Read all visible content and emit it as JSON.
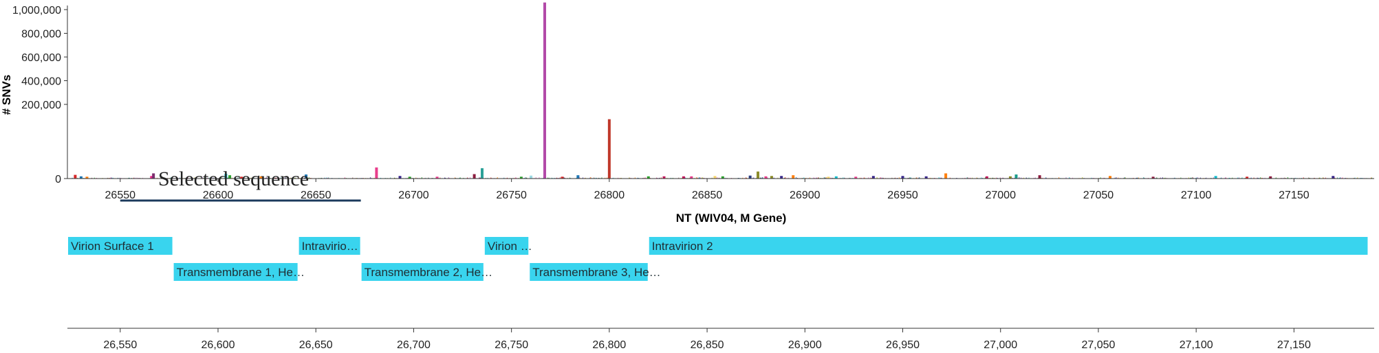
{
  "chart_data": {
    "type": "bar",
    "ylabel": "# SNVs",
    "xlabel": "NT (WIV04, M Gene)",
    "xlim": [
      26523,
      27191
    ],
    "y_ticks": [
      0,
      200000,
      400000,
      600000,
      800000,
      1000000
    ],
    "y_tick_labels": [
      "0",
      "200,000",
      "400,000",
      "600,000",
      "800,000",
      "1,000,000"
    ],
    "x_ticks": [
      26550,
      26600,
      26650,
      26700,
      26750,
      26800,
      26850,
      26900,
      26950,
      27000,
      27050,
      27100,
      27150
    ],
    "x_tick_labels": [
      "26550",
      "26600",
      "26650",
      "26700",
      "26750",
      "26800",
      "26850",
      "26900",
      "26950",
      "27000",
      "27050",
      "27100",
      "27150"
    ],
    "axis_x_tick_labels": [
      "26,550",
      "26,600",
      "26,650",
      "26,700",
      "26,750",
      "26,800",
      "26,850",
      "26,900",
      "26,950",
      "27,000",
      "27,050",
      "27,100",
      "27,150"
    ],
    "selection": {
      "label": "Selected sequence",
      "start": 26550,
      "end": 26673
    },
    "domains": [
      {
        "label": "Virion Surface 1",
        "start": 26523,
        "end": 26577,
        "row": 0
      },
      {
        "label": "Transmembrane 1, He…",
        "start": 26577,
        "end": 26641,
        "row": 1
      },
      {
        "label": "Intravirio…",
        "start": 26641,
        "end": 26673,
        "row": 0
      },
      {
        "label": "Transmembrane 2, He…",
        "start": 26673,
        "end": 26736,
        "row": 1
      },
      {
        "label": "Virion …",
        "start": 26736,
        "end": 26759,
        "row": 0
      },
      {
        "label": "Transmembrane 3, He…",
        "start": 26759,
        "end": 26820,
        "row": 1
      },
      {
        "label": "Intravirion 2",
        "start": 26820,
        "end": 27188,
        "row": 0
      }
    ],
    "highlight_bars": [
      {
        "x": 26527,
        "y": 10000,
        "color": "#d62728"
      },
      {
        "x": 26530,
        "y": 6000,
        "color": "#1f77b4"
      },
      {
        "x": 26533,
        "y": 5000,
        "color": "#ff7f0e"
      },
      {
        "x": 26566,
        "y": 7000,
        "color": "#e7298a"
      },
      {
        "x": 26567,
        "y": 14000,
        "color": "#7b2d6e"
      },
      {
        "x": 26604,
        "y": 13000,
        "color": "#17becf"
      },
      {
        "x": 26606,
        "y": 9000,
        "color": "#2ca02c"
      },
      {
        "x": 26612,
        "y": 5000,
        "color": "#d62728"
      },
      {
        "x": 26622,
        "y": 6000,
        "color": "#ff7f0e"
      },
      {
        "x": 26645,
        "y": 11000,
        "color": "#1f77b4"
      },
      {
        "x": 26681,
        "y": 30000,
        "color": "#e83e8c"
      },
      {
        "x": 26693,
        "y": 7000,
        "color": "#3b2a8c"
      },
      {
        "x": 26698,
        "y": 5000,
        "color": "#2ca02c"
      },
      {
        "x": 26712,
        "y": 5000,
        "color": "#e83e8c"
      },
      {
        "x": 26731,
        "y": 12000,
        "color": "#8c1d40"
      },
      {
        "x": 26735,
        "y": 28000,
        "color": "#2aa198"
      },
      {
        "x": 26755,
        "y": 5000,
        "color": "#2ca02c"
      },
      {
        "x": 26760,
        "y": 8000,
        "color": "#9edae5"
      },
      {
        "x": 26767,
        "y": 1060000,
        "color": "#b24aa8"
      },
      {
        "x": 26776,
        "y": 5000,
        "color": "#d62728"
      },
      {
        "x": 26784,
        "y": 9000,
        "color": "#1f77b4"
      },
      {
        "x": 26800,
        "y": 160000,
        "color": "#c0392b"
      },
      {
        "x": 26820,
        "y": 6000,
        "color": "#2ca02c"
      },
      {
        "x": 26828,
        "y": 6000,
        "color": "#c2185b"
      },
      {
        "x": 26838,
        "y": 6000,
        "color": "#c2185b"
      },
      {
        "x": 26842,
        "y": 6000,
        "color": "#e83e8c"
      },
      {
        "x": 26854,
        "y": 7000,
        "color": "#f7d774"
      },
      {
        "x": 26858,
        "y": 6000,
        "color": "#2ca02c"
      },
      {
        "x": 26872,
        "y": 8000,
        "color": "#2c3e80"
      },
      {
        "x": 26876,
        "y": 19000,
        "color": "#8c8c2a"
      },
      {
        "x": 26880,
        "y": 6000,
        "color": "#e83e8c"
      },
      {
        "x": 26883,
        "y": 7000,
        "color": "#8c8c2a"
      },
      {
        "x": 26888,
        "y": 7000,
        "color": "#3b2a8c"
      },
      {
        "x": 26894,
        "y": 9000,
        "color": "#ff7f0e"
      },
      {
        "x": 26912,
        "y": 5000,
        "color": "#f7d774"
      },
      {
        "x": 26916,
        "y": 6000,
        "color": "#17becf"
      },
      {
        "x": 26926,
        "y": 5000,
        "color": "#e83e8c"
      },
      {
        "x": 26935,
        "y": 7000,
        "color": "#3b2a8c"
      },
      {
        "x": 26950,
        "y": 7000,
        "color": "#3b2a8c"
      },
      {
        "x": 26962,
        "y": 6000,
        "color": "#3b2a8c"
      },
      {
        "x": 26972,
        "y": 14000,
        "color": "#ff7f0e"
      },
      {
        "x": 26993,
        "y": 6000,
        "color": "#c2185b"
      },
      {
        "x": 27005,
        "y": 6000,
        "color": "#8c8c2a"
      },
      {
        "x": 27008,
        "y": 11000,
        "color": "#1a9c8c"
      },
      {
        "x": 27020,
        "y": 9000,
        "color": "#8c1d40"
      },
      {
        "x": 27056,
        "y": 7000,
        "color": "#ff7f0e"
      },
      {
        "x": 27078,
        "y": 5000,
        "color": "#8c1d40"
      },
      {
        "x": 27110,
        "y": 7000,
        "color": "#17becf"
      },
      {
        "x": 27126,
        "y": 5000,
        "color": "#d62728"
      },
      {
        "x": 27138,
        "y": 6000,
        "color": "#8c1d40"
      },
      {
        "x": 27170,
        "y": 7000,
        "color": "#3b2a8c"
      }
    ]
  }
}
